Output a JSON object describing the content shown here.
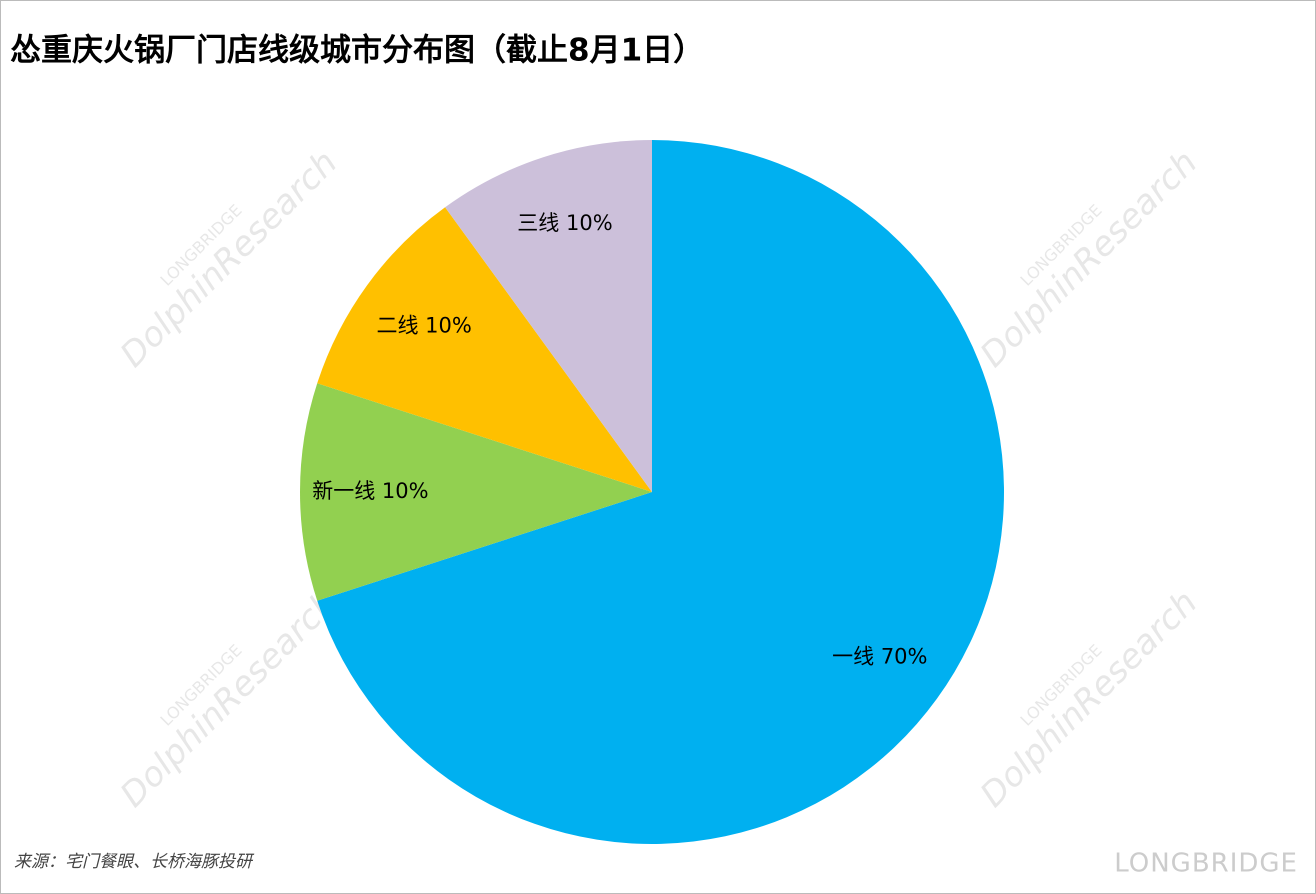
{
  "chart_data": {
    "type": "pie",
    "title": "怂重庆火锅厂门店线级城市分布图（截止8月1日）",
    "categories": [
      "一线",
      "新一线",
      "二线",
      "三线"
    ],
    "values": [
      70,
      10,
      10,
      10
    ],
    "value_labels": [
      "70%",
      "10%",
      "10%",
      "10%"
    ],
    "colors": [
      "#00B0F0",
      "#92D050",
      "#FFC000",
      "#CCC0DA"
    ],
    "source": "来源：宅门餐眼、长桥海豚投研"
  },
  "watermark": {
    "brand": "LONGBRIDGE",
    "name": "DolphinResearch"
  }
}
